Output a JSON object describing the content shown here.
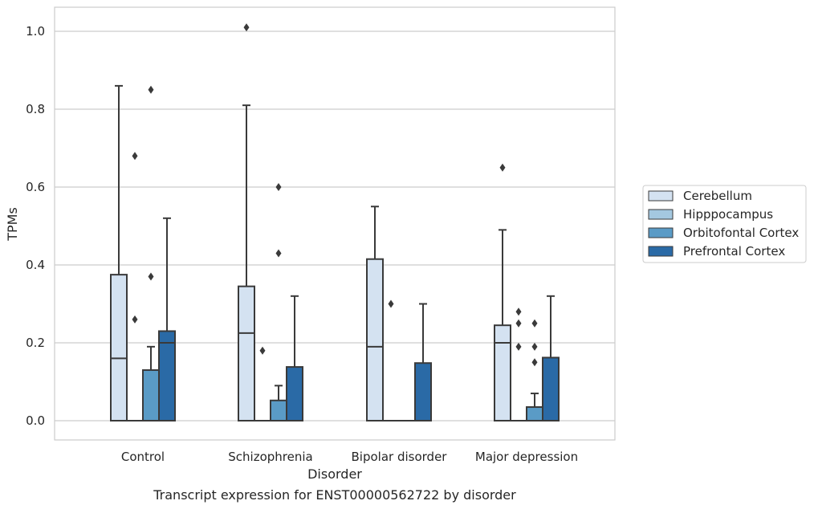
{
  "chart_data": {
    "type": "box",
    "caption": "Transcript expression for ENST00000562722 by disorder",
    "xlabel": "Disorder",
    "ylabel": "TPMs",
    "ylim": [
      -0.05,
      1.06
    ],
    "yticks": [
      0.0,
      0.2,
      0.4,
      0.6,
      0.8,
      1.0
    ],
    "ytick_labels": [
      "0.0",
      "0.2",
      "0.4",
      "0.6",
      "0.8",
      "1.0"
    ],
    "grid": true,
    "legend_position": "right",
    "categories": [
      "Control",
      "Schizophrenia",
      "Bipolar disorder",
      "Major depression"
    ],
    "series": [
      {
        "name": "Cerebellum",
        "color": "#d4e2f1",
        "boxes": [
          {
            "q1": 0,
            "median": 0.16,
            "q3": 0.375,
            "whisker_low": 0,
            "whisker_high": 0.86,
            "outliers": []
          },
          {
            "q1": 0,
            "median": 0.225,
            "q3": 0.345,
            "whisker_low": 0,
            "whisker_high": 0.81,
            "outliers": [
              1.01
            ]
          },
          {
            "q1": 0,
            "median": 0.19,
            "q3": 0.415,
            "whisker_low": 0,
            "whisker_high": 0.55,
            "outliers": []
          },
          {
            "q1": 0,
            "median": 0.2,
            "q3": 0.245,
            "whisker_low": 0,
            "whisker_high": 0.49,
            "outliers": [
              0.65
            ]
          }
        ]
      },
      {
        "name": "Hipppocampus",
        "color": "#a4c8e0",
        "boxes": [
          {
            "q1": 0,
            "median": 0,
            "q3": 0,
            "whisker_low": 0,
            "whisker_high": 0,
            "outliers": [
              0.68,
              0.26
            ]
          },
          {
            "q1": 0,
            "median": 0,
            "q3": 0,
            "whisker_low": 0,
            "whisker_high": 0,
            "outliers": [
              0.18
            ]
          },
          {
            "q1": 0,
            "median": 0,
            "q3": 0,
            "whisker_low": 0,
            "whisker_high": 0,
            "outliers": [
              0.3
            ]
          },
          {
            "q1": 0,
            "median": 0,
            "q3": 0,
            "whisker_low": 0,
            "whisker_high": 0,
            "outliers": [
              0.28,
              0.25,
              0.19
            ]
          }
        ]
      },
      {
        "name": "Orbitofontal Cortex",
        "color": "#5a9bc6",
        "boxes": [
          {
            "q1": 0,
            "median": 0,
            "q3": 0.13,
            "whisker_low": 0,
            "whisker_high": 0.19,
            "outliers": [
              0.85,
              0.37
            ]
          },
          {
            "q1": 0,
            "median": 0,
            "q3": 0.052,
            "whisker_low": 0,
            "whisker_high": 0.09,
            "outliers": [
              0.6,
              0.43
            ]
          },
          {
            "q1": 0,
            "median": 0,
            "q3": 0,
            "whisker_low": 0,
            "whisker_high": 0,
            "outliers": []
          },
          {
            "q1": 0,
            "median": 0,
            "q3": 0.035,
            "whisker_low": 0,
            "whisker_high": 0.07,
            "outliers": [
              0.25,
              0.19,
              0.15
            ]
          }
        ]
      },
      {
        "name": "Prefrontal Cortex",
        "color": "#2a6aa6",
        "boxes": [
          {
            "q1": 0,
            "median": 0.2,
            "q3": 0.23,
            "whisker_low": 0,
            "whisker_high": 0.52,
            "outliers": []
          },
          {
            "q1": 0,
            "median": 0,
            "q3": 0.138,
            "whisker_low": 0,
            "whisker_high": 0.32,
            "outliers": []
          },
          {
            "q1": 0,
            "median": 0,
            "q3": 0.148,
            "whisker_low": 0,
            "whisker_high": 0.3,
            "outliers": []
          },
          {
            "q1": 0,
            "median": 0,
            "q3": 0.162,
            "whisker_low": 0,
            "whisker_high": 0.32,
            "outliers": []
          }
        ]
      }
    ]
  },
  "style": {
    "grid_color": "#cccccc",
    "frame_color": "#cccccc",
    "line_color": "#3a3a3a",
    "text_color": "#262626"
  }
}
